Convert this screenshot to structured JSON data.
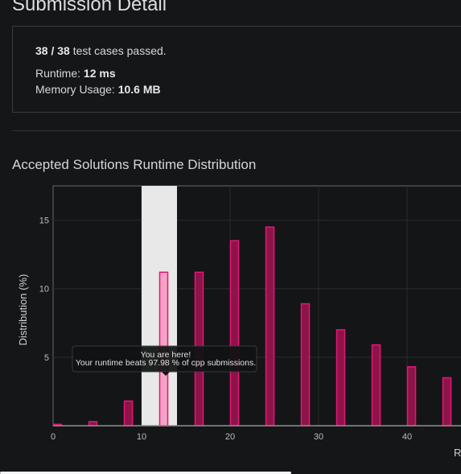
{
  "page": {
    "title": "Submission Detail"
  },
  "summary": {
    "passed_count": "38 / 38",
    "passed_text": " test cases passed.",
    "runtime_label": "Runtime: ",
    "runtime_value": "12 ms",
    "memory_label": "Memory Usage: ",
    "memory_value": "10.6 MB"
  },
  "chart_section": {
    "title": "Accepted Solutions Runtime Distribution"
  },
  "tooltip": {
    "line1": "You are here!",
    "line2": "Your runtime beats 97.98 % of cpp submissions."
  },
  "colors": {
    "bar_fill": "#8c1447",
    "bar_stroke": "#e8137a",
    "highlight_fill": "#f5a3c4",
    "highlight_stroke": "#e8137a",
    "highlight_band": "#e8e8e8",
    "tooltip_bg": "#111213"
  },
  "chart_data": {
    "type": "bar",
    "title": "",
    "xlabel": "R",
    "ylabel": "Distribution (%)",
    "xlim": [
      0,
      46
    ],
    "ylim": [
      0,
      17.5
    ],
    "xticks": [
      0,
      10,
      20,
      30,
      40
    ],
    "yticks": [
      5,
      10,
      15
    ],
    "grid": true,
    "highlight_range": [
      10,
      14
    ],
    "bars": [
      {
        "x": 0.5,
        "value": 0.1
      },
      {
        "x": 4.5,
        "value": 0.3
      },
      {
        "x": 8.5,
        "value": 1.8
      },
      {
        "x": 12.5,
        "value": 11.2,
        "highlight": true
      },
      {
        "x": 16.5,
        "value": 11.2
      },
      {
        "x": 20.5,
        "value": 13.5
      },
      {
        "x": 24.5,
        "value": 14.5
      },
      {
        "x": 28.5,
        "value": 8.9
      },
      {
        "x": 32.5,
        "value": 7.0
      },
      {
        "x": 36.5,
        "value": 5.9
      },
      {
        "x": 40.5,
        "value": 4.3
      },
      {
        "x": 44.5,
        "value": 3.5
      }
    ]
  }
}
